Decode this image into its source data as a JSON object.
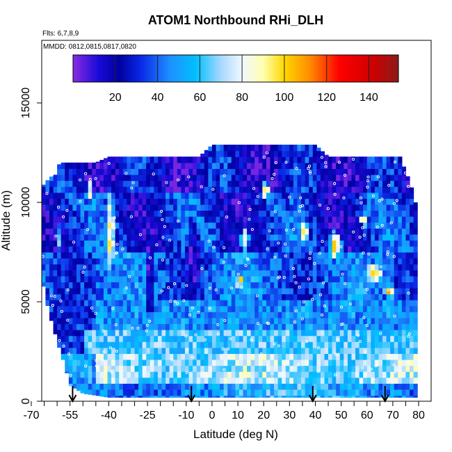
{
  "chart_data": {
    "type": "heatmap",
    "title": "ATOM1 Northbound RHi_DLH",
    "flights_note": "Flts: 6,7,8,9",
    "dates_note": "MMDD: 0812,0815,0817,0820",
    "xlabel": "Latitude (deg N)",
    "ylabel": "Altitude (m)",
    "xlim": [
      -70,
      80
    ],
    "ylim": [
      0,
      17500
    ],
    "x_ticks": [
      -70,
      -55,
      -40,
      -25,
      -10,
      0,
      10,
      20,
      30,
      40,
      50,
      60,
      70,
      80
    ],
    "x_tick_labels": [
      "-70",
      "-55",
      "-40",
      "-25",
      "-10",
      "0",
      "10",
      "20",
      "30",
      "40",
      "50",
      "60",
      "70",
      "80"
    ],
    "x_minor_step": 5,
    "y_ticks": [
      0,
      5000,
      10000,
      15000
    ],
    "y_tick_labels": [
      "0",
      "5000",
      "10000",
      "15000"
    ],
    "colorbar": {
      "range": [
        0,
        154
      ],
      "ticks": [
        20,
        40,
        60,
        80,
        100,
        120,
        140
      ],
      "tick_labels": [
        "20",
        "40",
        "60",
        "80",
        "100",
        "120",
        "140"
      ],
      "divisions": [
        20,
        40,
        60,
        80,
        100,
        120,
        140
      ],
      "stops": [
        {
          "v": 0,
          "c": "#8a2be2"
        },
        {
          "v": 12,
          "c": "#1a0ad8"
        },
        {
          "v": 22,
          "c": "#0000a0"
        },
        {
          "v": 32,
          "c": "#0a28e6"
        },
        {
          "v": 46,
          "c": "#1e90ff"
        },
        {
          "v": 58,
          "c": "#00bfff"
        },
        {
          "v": 70,
          "c": "#a8d8ff"
        },
        {
          "v": 80,
          "c": "#f0f8ff"
        },
        {
          "v": 90,
          "c": "#ffffb0"
        },
        {
          "v": 100,
          "c": "#ffd700"
        },
        {
          "v": 112,
          "c": "#ff8c00"
        },
        {
          "v": 126,
          "c": "#ff0000"
        },
        {
          "v": 142,
          "c": "#cd0000"
        },
        {
          "v": 154,
          "c": "#8b1a1a"
        }
      ]
    },
    "coverage_envelope": {
      "lat": [
        -69,
        -67,
        -65,
        -63,
        -61,
        -59,
        -57,
        -55,
        -50,
        -45,
        -40,
        -35,
        -30,
        -25,
        -20,
        -15,
        -10,
        -5,
        0,
        5,
        10,
        15,
        20,
        25,
        30,
        35,
        40,
        45,
        50,
        55,
        60,
        65,
        70,
        73,
        75,
        77,
        78
      ],
      "top_m": [
        11500,
        11500,
        10800,
        11300,
        11300,
        12000,
        12000,
        12000,
        12000,
        12000,
        12300,
        12300,
        12300,
        12300,
        12300,
        12300,
        12300,
        12300,
        12900,
        12900,
        12900,
        12900,
        12900,
        12900,
        12900,
        12900,
        12900,
        12300,
        12300,
        12300,
        12300,
        12300,
        12300,
        12300,
        11500,
        11000,
        10000
      ],
      "bottom_m": [
        9800,
        7800,
        5500,
        4400,
        3500,
        2600,
        1800,
        800,
        400,
        300,
        200,
        200,
        200,
        200,
        200,
        200,
        200,
        200,
        200,
        200,
        200,
        200,
        200,
        200,
        200,
        200,
        200,
        200,
        200,
        200,
        200,
        200,
        200,
        200,
        200,
        200,
        200
      ]
    },
    "features": [
      {
        "lat": -40,
        "alt": 8500,
        "width_deg": 3,
        "height_m": 5000,
        "rhi": 96
      },
      {
        "lat": -48,
        "alt": 10500,
        "width_deg": 3,
        "height_m": 1200,
        "rhi": 85
      },
      {
        "lat": -25,
        "alt": 6000,
        "width_deg": 4,
        "height_m": 5000,
        "rhi": 10
      },
      {
        "lat": -8,
        "alt": 7000,
        "width_deg": 6,
        "height_m": 5000,
        "rhi": 8
      },
      {
        "lat": -25,
        "alt": 11000,
        "width_deg": 8,
        "height_m": 1000,
        "rhi": 12
      },
      {
        "lat": 12,
        "alt": 9000,
        "width_deg": 10,
        "height_m": 2500,
        "rhi": 15
      },
      {
        "lat": 10,
        "alt": 5900,
        "width_deg": 3,
        "height_m": 700,
        "rhi": 98
      },
      {
        "lat": 12,
        "alt": 8000,
        "width_deg": 4,
        "height_m": 1400,
        "rhi": 96
      },
      {
        "lat": 20,
        "alt": 10500,
        "width_deg": 4,
        "height_m": 1000,
        "rhi": 104
      },
      {
        "lat": 28,
        "alt": 10000,
        "width_deg": 3,
        "height_m": 1500,
        "rhi": 20
      },
      {
        "lat": 35,
        "alt": 8400,
        "width_deg": 3,
        "height_m": 1200,
        "rhi": 104
      },
      {
        "lat": 47,
        "alt": 7700,
        "width_deg": 6,
        "height_m": 1600,
        "rhi": 98
      },
      {
        "lat": 62,
        "alt": 6300,
        "width_deg": 7,
        "height_m": 1000,
        "rhi": 102
      },
      {
        "lat": 68,
        "alt": 5400,
        "width_deg": 5,
        "height_m": 800,
        "rhi": 100
      },
      {
        "lat": 58,
        "alt": 9000,
        "width_deg": 3,
        "height_m": 800,
        "rhi": 110
      },
      {
        "lat": -68,
        "alt": 11100,
        "width_deg": 2,
        "height_m": 600,
        "rhi": 130
      },
      {
        "lat": -55,
        "alt": 7000,
        "width_deg": 3,
        "height_m": 3000,
        "rhi": 25
      },
      {
        "lat": -60,
        "alt": 8000,
        "width_deg": 2,
        "height_m": 2000,
        "rhi": 60
      }
    ],
    "profile_arrows_lat": [
      -54,
      -8,
      39,
      67
    ]
  }
}
